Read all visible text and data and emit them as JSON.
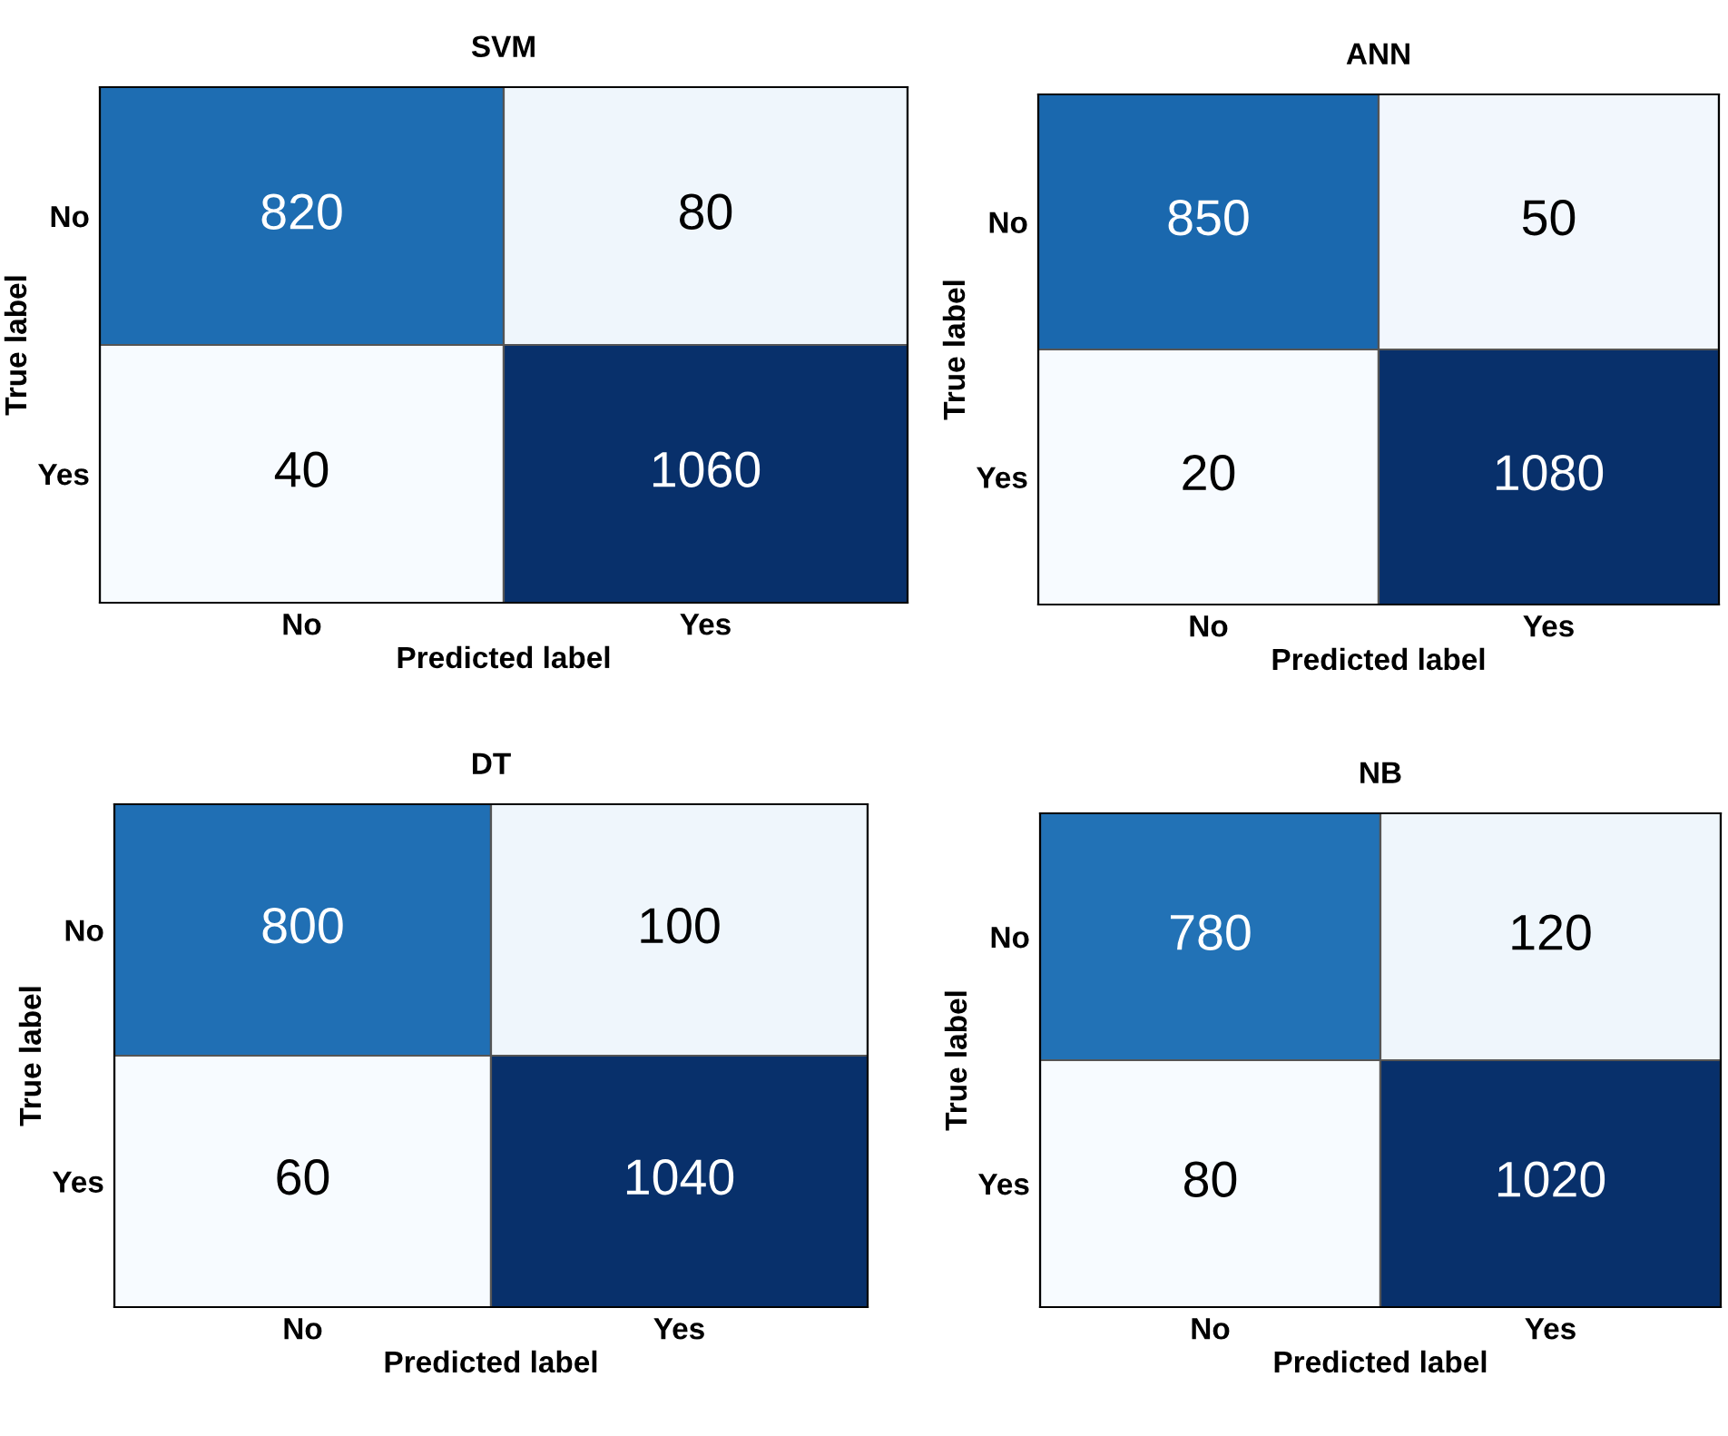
{
  "chart_data": [
    {
      "type": "heatmap",
      "title": "SVM",
      "xlabel": "Predicted label",
      "ylabel": "True label",
      "categories": [
        "No",
        "Yes"
      ],
      "y_categories": [
        "No",
        "Yes"
      ],
      "cells": [
        [
          820,
          80
        ],
        [
          40,
          1060
        ]
      ],
      "data_labels": true
    },
    {
      "type": "heatmap",
      "title": "ANN",
      "xlabel": "Predicted label",
      "ylabel": "True label",
      "categories": [
        "No",
        "Yes"
      ],
      "y_categories": [
        "No",
        "Yes"
      ],
      "cells": [
        [
          850,
          50
        ],
        [
          20,
          1080
        ]
      ],
      "data_labels": true
    },
    {
      "type": "heatmap",
      "title": "DT",
      "xlabel": "Predicted label",
      "ylabel": "True label",
      "categories": [
        "No",
        "Yes"
      ],
      "y_categories": [
        "No",
        "Yes"
      ],
      "cells": [
        [
          800,
          100
        ],
        [
          60,
          1040
        ]
      ],
      "data_labels": true
    },
    {
      "type": "heatmap",
      "title": "NB",
      "xlabel": "Predicted label",
      "ylabel": "True label",
      "categories": [
        "No",
        "Yes"
      ],
      "y_categories": [
        "No",
        "Yes"
      ],
      "cells": [
        [
          780,
          120
        ],
        [
          80,
          1020
        ]
      ],
      "data_labels": true
    }
  ]
}
